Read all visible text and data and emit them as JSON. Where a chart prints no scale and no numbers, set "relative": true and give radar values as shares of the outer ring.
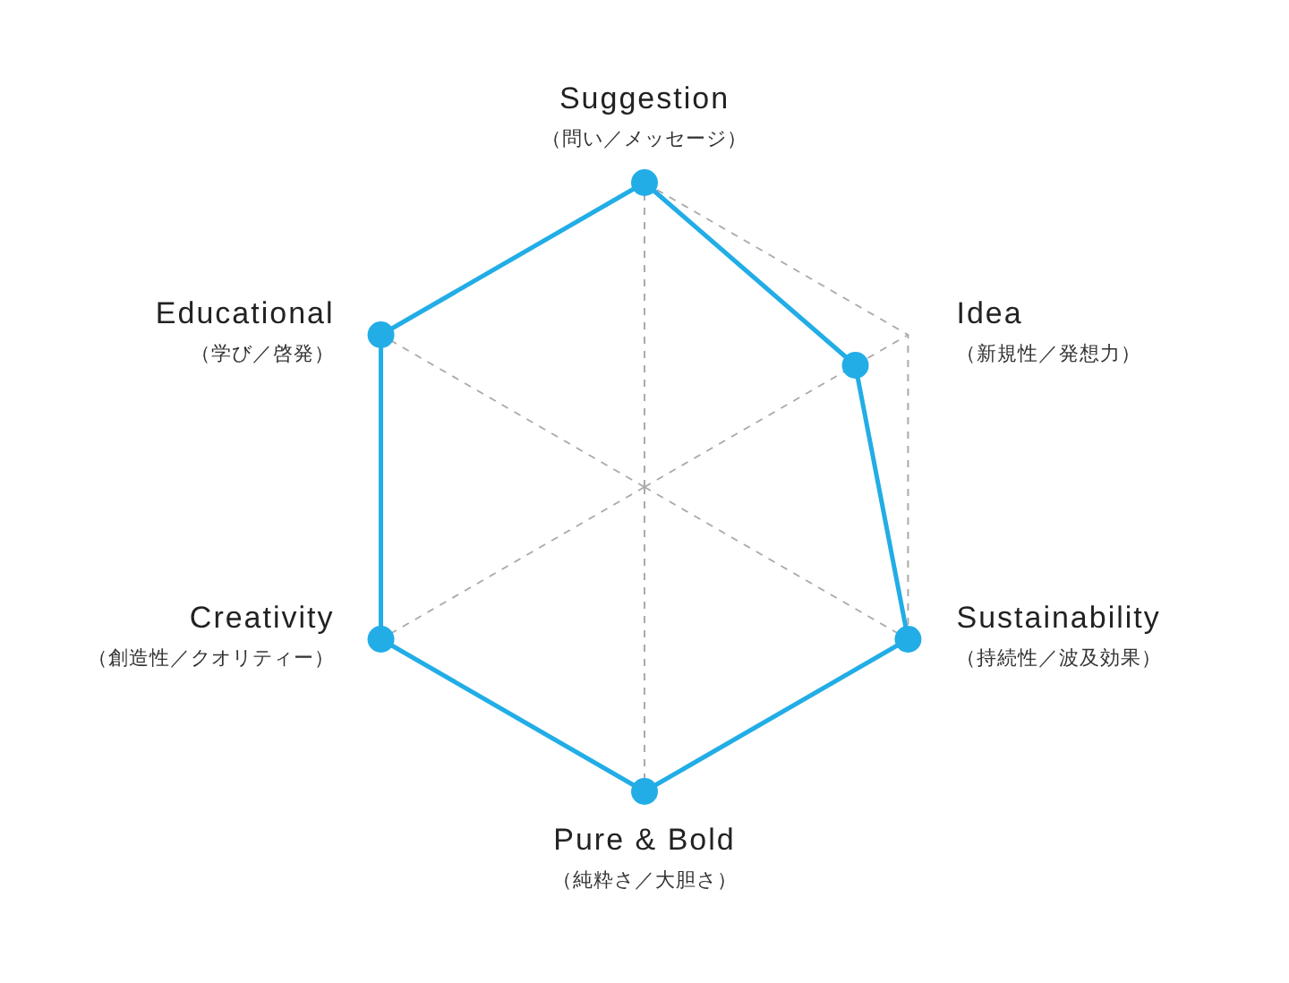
{
  "chart_data": {
    "type": "radar",
    "categories": [
      "Suggestion\n（問い／メッセージ）",
      "Idea\n（新規性／発想力）",
      "Sustainability\n（持続性／波及効果）",
      "Pure & Bold\n（純粋さ／大胆さ）",
      "Creativity\n（創造性／クオリティー）",
      "Educational\n（学び／啓発）"
    ],
    "series": [
      {
        "color": "#22ade6",
        "values": [
          1,
          0.8,
          1,
          1,
          1,
          1
        ]
      }
    ],
    "relative": true,
    "grid": true,
    "marker": "circle",
    "line_style": "solid"
  }
}
